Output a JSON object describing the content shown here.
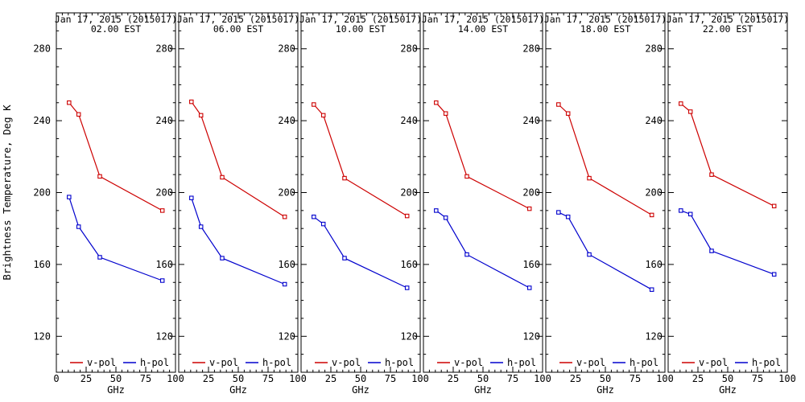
{
  "figure": {
    "background": "#ffffff",
    "frame_color": "#000000",
    "v_pol_color": "#cd0000",
    "h_pol_color": "#0000cd"
  },
  "chart_data": {
    "type": "line",
    "title_line1": "Jan 17, 2015 (2015017)",
    "ylabel": "Brightness Temperature, Deg K",
    "xlabel": "GHz",
    "legend": [
      "v-pol",
      "h-pol"
    ],
    "legend_position": "bottom-inside-each-panel",
    "grid": false,
    "x": [
      10.65,
      18.7,
      36.5,
      89.0
    ],
    "xlim": [
      0,
      100
    ],
    "ylim": [
      100,
      300
    ],
    "x_ticks": [
      0,
      25,
      50,
      75,
      100
    ],
    "y_ticks": [
      120,
      160,
      200,
      240,
      280
    ],
    "panels": [
      {
        "time": "02.00 EST",
        "series": [
          {
            "name": "v-pol",
            "values": [
              250,
              243.5,
              209,
              190
            ]
          },
          {
            "name": "h-pol",
            "values": [
              197.5,
              181,
              164,
              151
            ]
          }
        ]
      },
      {
        "time": "06.00 EST",
        "series": [
          {
            "name": "v-pol",
            "values": [
              250.5,
              243,
              208.5,
              186.5
            ]
          },
          {
            "name": "h-pol",
            "values": [
              197,
              181,
              163.5,
              149
            ]
          }
        ]
      },
      {
        "time": "10.00 EST",
        "series": [
          {
            "name": "v-pol",
            "values": [
              249,
              243,
              208,
              187
            ]
          },
          {
            "name": "h-pol",
            "values": [
              186.5,
              182.5,
              163.5,
              147
            ]
          }
        ]
      },
      {
        "time": "14.00 EST",
        "series": [
          {
            "name": "v-pol",
            "values": [
              250,
              244,
              209,
              191
            ]
          },
          {
            "name": "h-pol",
            "values": [
              190,
              186,
              165.5,
              147
            ]
          }
        ]
      },
      {
        "time": "18.00 EST",
        "series": [
          {
            "name": "v-pol",
            "values": [
              249,
              244,
              208,
              187.5
            ]
          },
          {
            "name": "h-pol",
            "values": [
              189,
              186.5,
              165.5,
              146
            ]
          }
        ]
      },
      {
        "time": "22.00 EST",
        "series": [
          {
            "name": "v-pol",
            "values": [
              249.5,
              245,
              210,
              192.5
            ]
          },
          {
            "name": "h-pol",
            "values": [
              190,
              188,
              167.5,
              154.5
            ]
          }
        ]
      }
    ]
  }
}
